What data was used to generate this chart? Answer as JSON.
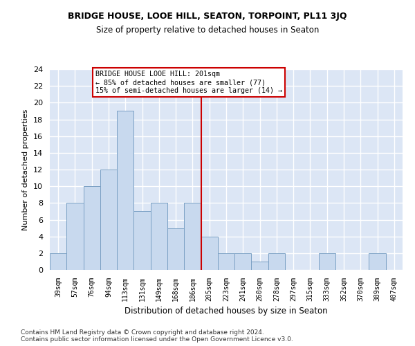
{
  "title": "BRIDGE HOUSE, LOOE HILL, SEATON, TORPOINT, PL11 3JQ",
  "subtitle": "Size of property relative to detached houses in Seaton",
  "xlabel": "Distribution of detached houses by size in Seaton",
  "ylabel": "Number of detached properties",
  "bar_categories": [
    "39sqm",
    "57sqm",
    "76sqm",
    "94sqm",
    "113sqm",
    "131sqm",
    "149sqm",
    "168sqm",
    "186sqm",
    "205sqm",
    "223sqm",
    "241sqm",
    "260sqm",
    "278sqm",
    "297sqm",
    "315sqm",
    "333sqm",
    "352sqm",
    "370sqm",
    "389sqm",
    "407sqm"
  ],
  "bar_values": [
    2,
    8,
    10,
    12,
    19,
    7,
    8,
    5,
    8,
    4,
    2,
    2,
    1,
    2,
    0,
    0,
    2,
    0,
    0,
    2,
    0
  ],
  "bar_color": "#c8d9ee",
  "bar_edge_color": "#7aa0c4",
  "vline_index": 9,
  "vline_color": "#cc0000",
  "annotation_text": "BRIDGE HOUSE LOOE HILL: 201sqm\n← 85% of detached houses are smaller (77)\n15% of semi-detached houses are larger (14) →",
  "annotation_box_color": "white",
  "annotation_box_edge_color": "#cc0000",
  "ylim": [
    0,
    24
  ],
  "yticks": [
    0,
    2,
    4,
    6,
    8,
    10,
    12,
    14,
    16,
    18,
    20,
    22,
    24
  ],
  "background_color": "#dce6f5",
  "grid_color": "white",
  "title_fontsize": 9,
  "subtitle_fontsize": 8.5,
  "footer": "Contains HM Land Registry data © Crown copyright and database right 2024.\nContains public sector information licensed under the Open Government Licence v3.0."
}
